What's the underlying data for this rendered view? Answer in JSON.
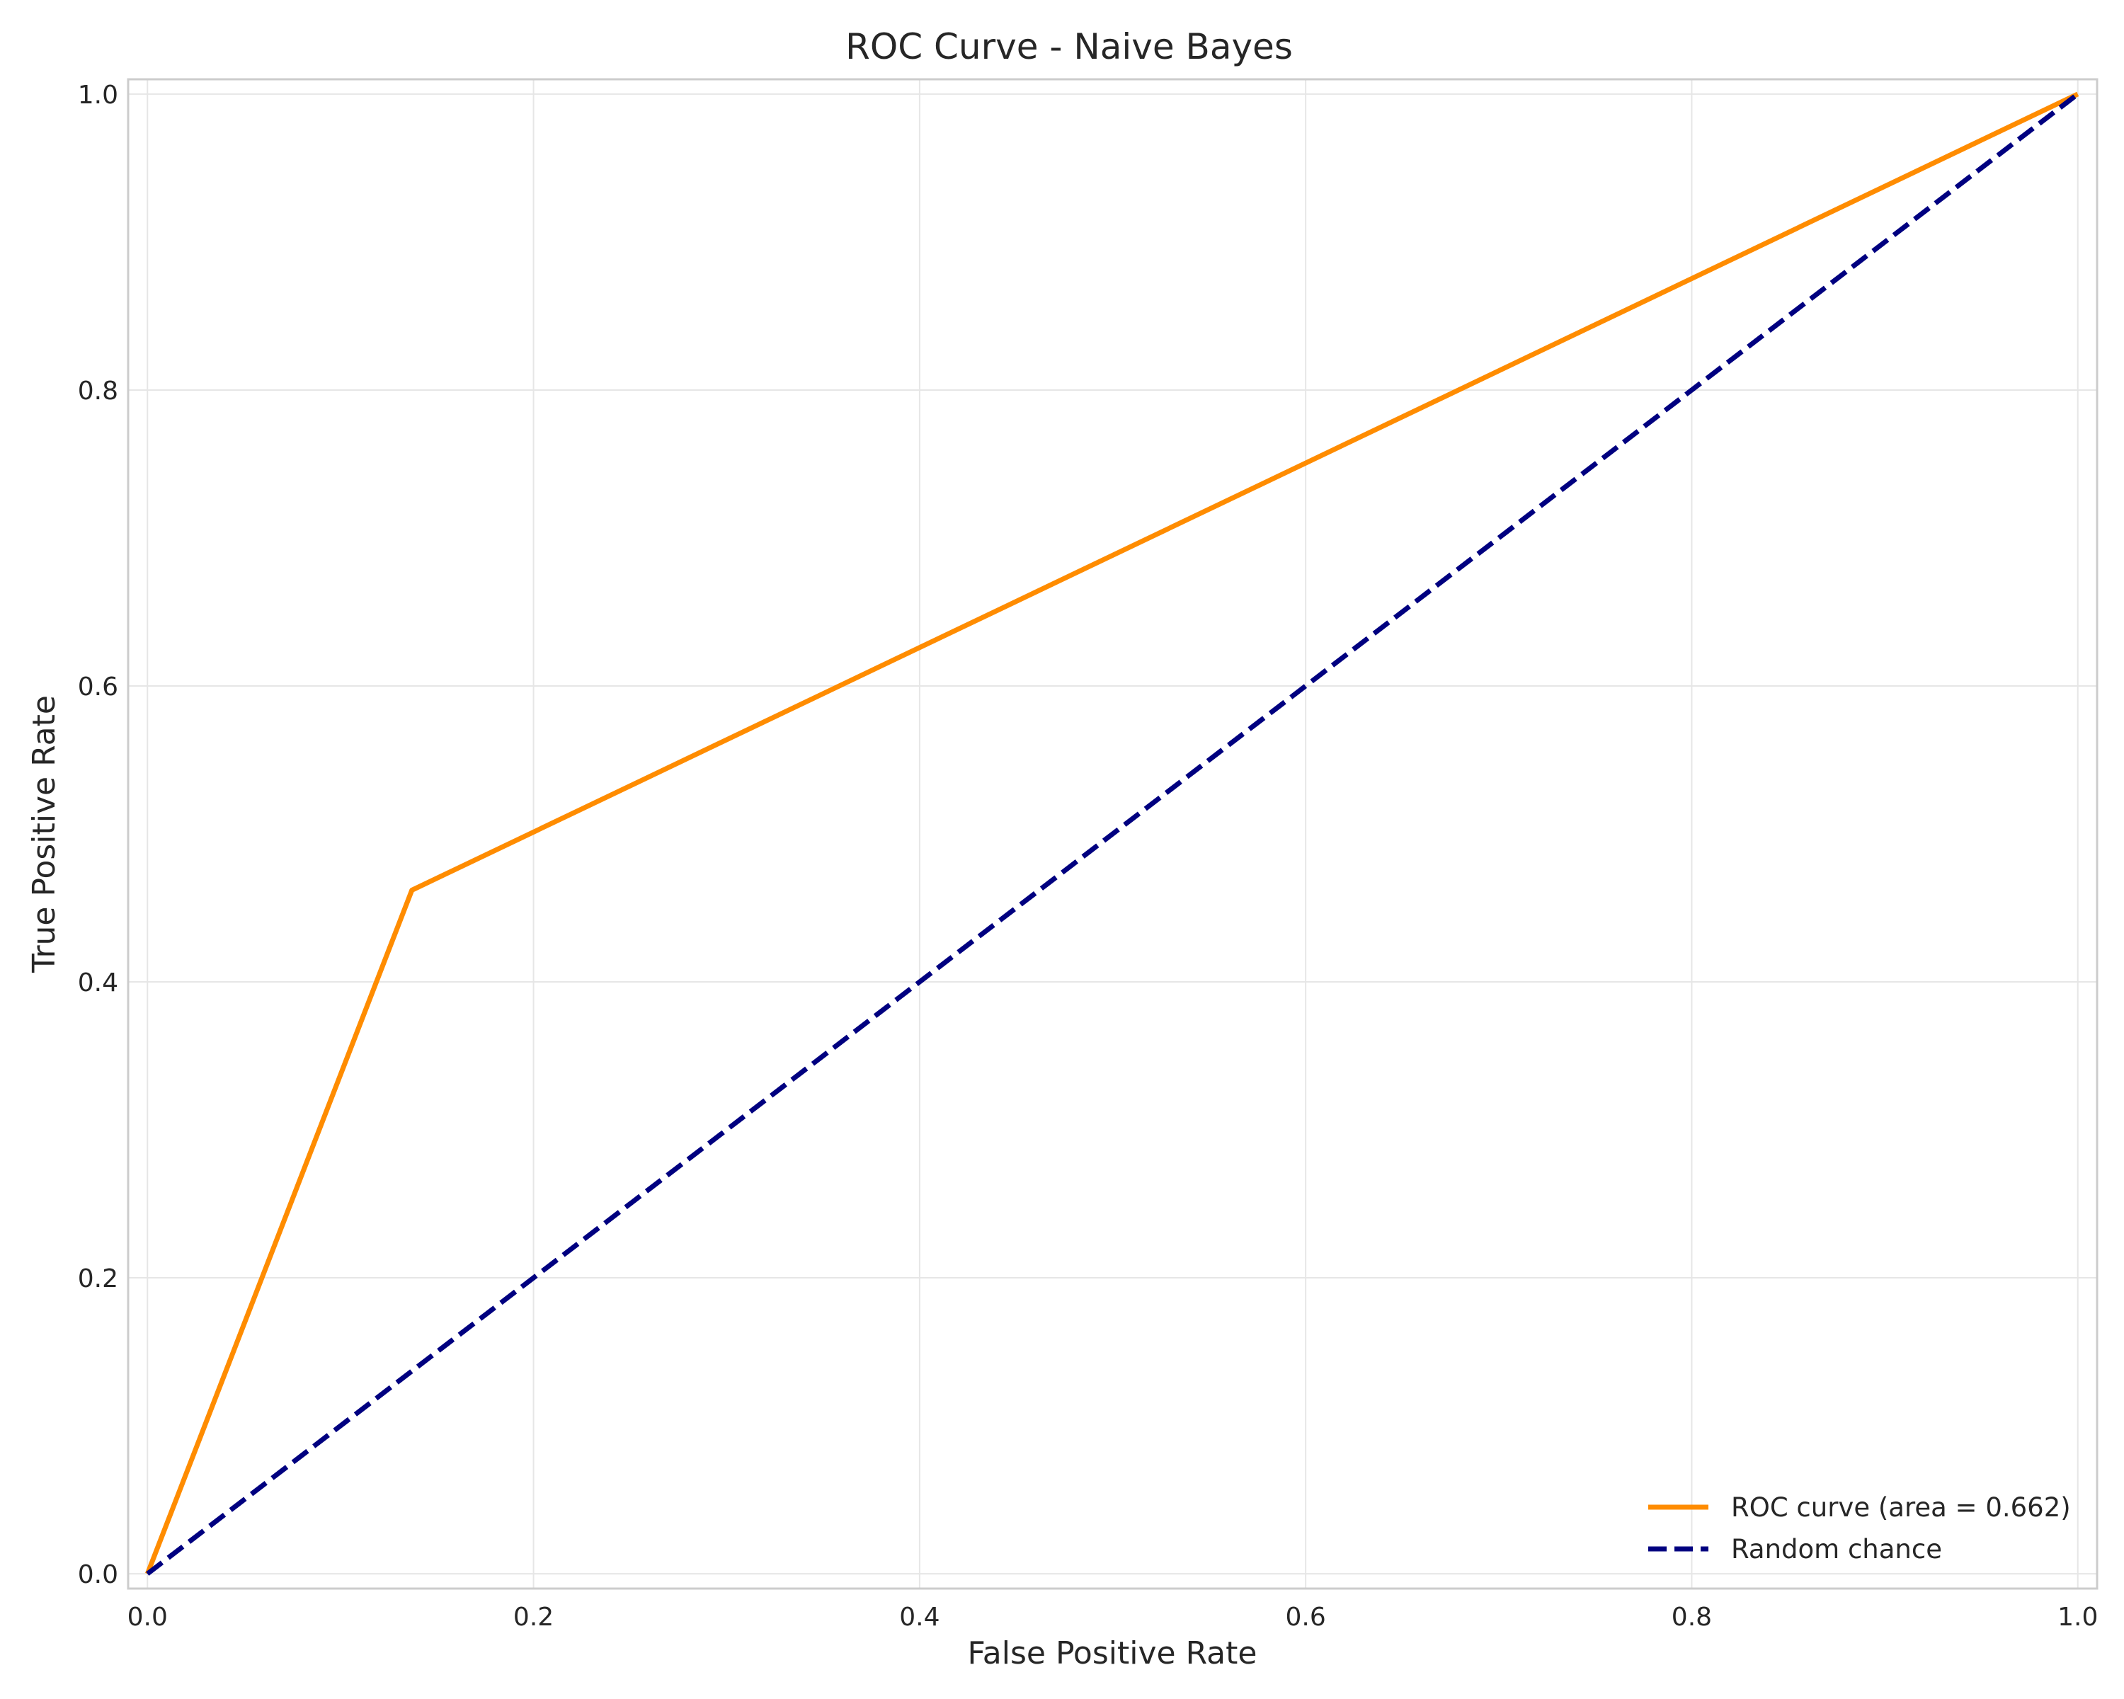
{
  "chart_data": {
    "type": "line",
    "title": "ROC Curve - Naive Bayes",
    "xlabel": "False Positive Rate",
    "ylabel": "True Positive Rate",
    "xlim": [
      -0.01,
      1.01
    ],
    "ylim": [
      -0.01,
      1.01
    ],
    "xticks": [
      0.0,
      0.2,
      0.4,
      0.6,
      0.8,
      1.0
    ],
    "yticks": [
      0.0,
      0.2,
      0.4,
      0.6,
      0.8,
      1.0
    ],
    "xtick_labels": [
      "0.0",
      "0.2",
      "0.4",
      "0.6",
      "0.8",
      "1.0"
    ],
    "ytick_labels": [
      "0.0",
      "0.2",
      "0.4",
      "0.6",
      "0.8",
      "1.0"
    ],
    "grid": true,
    "legend_position": "lower-right",
    "series": [
      {
        "name": "ROC curve (area = 0.662)",
        "color": "#ff8c00",
        "style": "solid",
        "x": [
          0.0,
          0.137,
          1.0
        ],
        "y": [
          0.0,
          0.462,
          1.0
        ]
      },
      {
        "name": "Random chance",
        "color": "#000080",
        "style": "dashed",
        "x": [
          0.0,
          1.0
        ],
        "y": [
          0.0,
          1.0
        ]
      }
    ]
  }
}
